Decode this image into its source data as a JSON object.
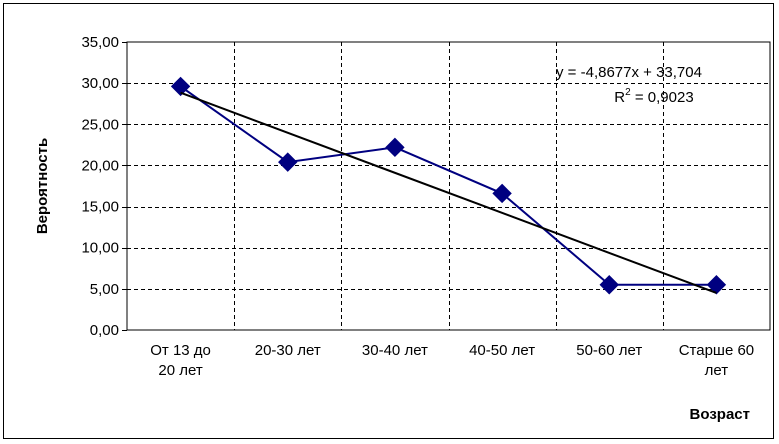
{
  "chart_data": {
    "type": "line",
    "title": "",
    "xlabel": "Возраст",
    "ylabel": "Вероятность",
    "categories": [
      [
        "От 13 до",
        "20 лет"
      ],
      [
        "20-30 лет"
      ],
      [
        "30-40 лет"
      ],
      [
        "40-50 лет"
      ],
      [
        "50-60 лет"
      ],
      [
        "Старше 60",
        "лет"
      ]
    ],
    "series": [
      {
        "values": [
          29.6,
          20.4,
          22.2,
          16.6,
          5.5,
          5.5
        ],
        "color": "#000080",
        "marker": "diamond"
      }
    ],
    "trendline": {
      "type": "linear",
      "slope": -4.8677,
      "intercept": 33.704,
      "color": "#000000",
      "equation": "y = -4,8677x + 33,704",
      "r2_prefix": "R",
      "r2_exp": "2",
      "r2_suffix": " = 0,9023"
    },
    "ylim": [
      0,
      35
    ],
    "yticks": [
      "0,00",
      "5,00",
      "10,00",
      "15,00",
      "20,00",
      "25,00",
      "30,00",
      "35,00"
    ],
    "grid": "dashed",
    "legend": "none"
  }
}
